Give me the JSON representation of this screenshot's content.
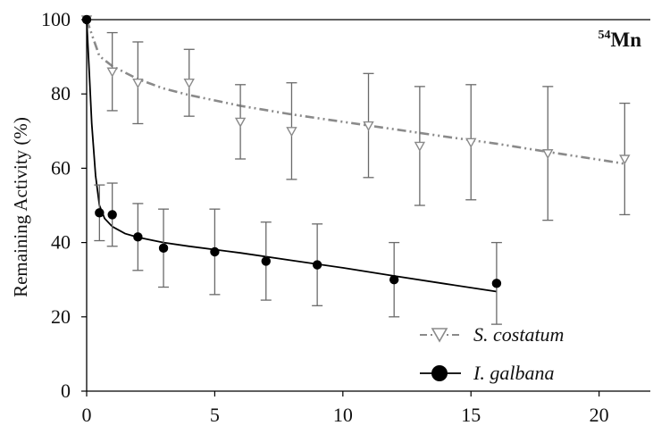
{
  "chart_data": {
    "type": "scatter",
    "title": "",
    "annotation": {
      "sup": "54",
      "text": "Mn"
    },
    "xlabel": "",
    "ylabel": "Remaining Activity (%)",
    "xlim": [
      0,
      22
    ],
    "ylim": [
      0,
      100
    ],
    "x_ticks": [
      0,
      5,
      10,
      15,
      20
    ],
    "y_ticks": [
      0,
      20,
      40,
      60,
      80,
      100
    ],
    "grid": false,
    "legend_position": "bottom-right",
    "series": [
      {
        "name": "S. costatum",
        "marker": "triangle-down-open",
        "color": "#8a8a8a",
        "x": [
          0,
          1,
          2,
          4,
          6,
          8,
          11,
          13,
          15,
          18,
          21
        ],
        "y": [
          100,
          86,
          83,
          83,
          72.5,
          70,
          71.5,
          66,
          67,
          64,
          62.5
        ],
        "err": [
          0,
          10.5,
          11,
          9,
          10,
          13,
          14,
          16,
          15.5,
          18,
          15
        ],
        "fit": [
          [
            0,
            100
          ],
          [
            0.5,
            90.2
          ],
          [
            1,
            87.5
          ],
          [
            2,
            84
          ],
          [
            3,
            81.5
          ],
          [
            4,
            79.7
          ],
          [
            6,
            76.8
          ],
          [
            8,
            74.5
          ],
          [
            10,
            72.5
          ],
          [
            12,
            70.5
          ],
          [
            14,
            68.5
          ],
          [
            16,
            66.6
          ],
          [
            18,
            64.4
          ],
          [
            20,
            62.3
          ],
          [
            21,
            61.2
          ]
        ]
      },
      {
        "name": "I. galbana",
        "marker": "circle-filled",
        "color": "#000000",
        "x": [
          0,
          0.5,
          1,
          2,
          3,
          5,
          7,
          9,
          12,
          16
        ],
        "y": [
          100,
          48,
          47.5,
          41.5,
          38.5,
          37.5,
          35,
          34,
          30,
          29
        ],
        "err": [
          0,
          7.5,
          8.5,
          9,
          10.5,
          11.5,
          10.5,
          11,
          10,
          11
        ],
        "fit": [
          [
            0,
            100
          ],
          [
            0.1,
            86
          ],
          [
            0.2,
            72
          ],
          [
            0.35,
            58
          ],
          [
            0.5,
            50
          ],
          [
            0.7,
            46.5
          ],
          [
            1,
            44.3
          ],
          [
            1.5,
            42.4
          ],
          [
            2,
            41.4
          ],
          [
            3,
            40
          ],
          [
            4,
            39
          ],
          [
            6,
            37.2
          ],
          [
            8,
            35.2
          ],
          [
            10,
            33.2
          ],
          [
            12,
            31
          ],
          [
            14,
            28.9
          ],
          [
            16,
            26.8
          ]
        ]
      }
    ]
  }
}
